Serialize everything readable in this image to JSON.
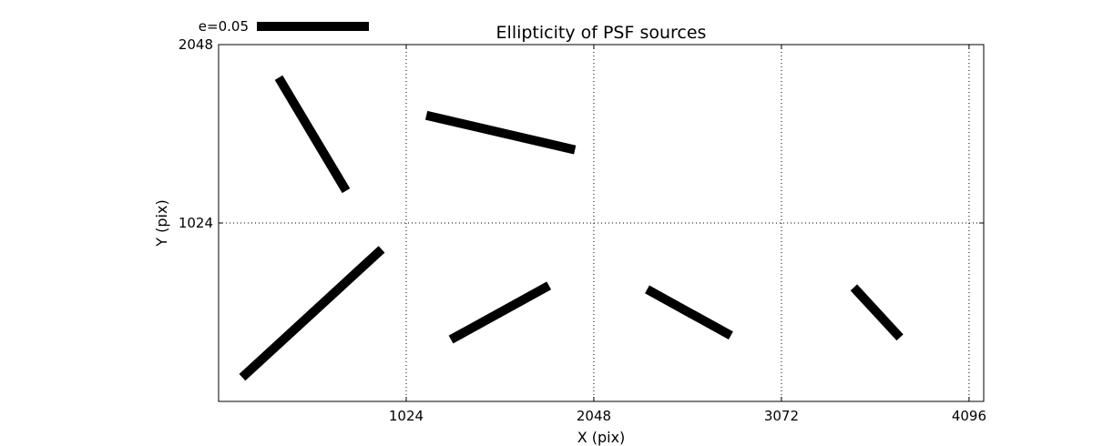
{
  "chart_data": {
    "type": "whisker",
    "title": "Ellipticity of PSF sources",
    "xlabel": "X (pix)",
    "ylabel": "Y (pix)",
    "xlim": [
      0,
      4176
    ],
    "ylim": [
      0,
      2048
    ],
    "xticks": [
      1024,
      2048,
      3072,
      4096
    ],
    "xtick_labels": [
      "1024",
      "2048",
      "3072",
      "4096"
    ],
    "yticks": [
      1024,
      2048
    ],
    "ytick_labels": [
      "1024",
      "2048"
    ],
    "grid": true,
    "grid_style": "dotted",
    "line_color": "#000000",
    "key": {
      "label": "e=0.05",
      "e": 0.05,
      "placement": "top-left, above axes"
    },
    "segments": [
      {
        "x": [
          328,
          696
        ],
        "y": [
          1858,
          1209
        ]
      },
      {
        "x": [
          1134,
          1945
        ],
        "y": [
          1642,
          1444
        ]
      },
      {
        "x": [
          129,
          890
        ],
        "y": [
          138,
          873
        ]
      },
      {
        "x": [
          1268,
          1803
        ],
        "y": [
          355,
          665
        ]
      },
      {
        "x": [
          2339,
          2796
        ],
        "y": [
          643,
          378
        ]
      },
      {
        "x": [
          3467,
          3719
        ],
        "y": [
          654,
          367
        ]
      }
    ]
  }
}
